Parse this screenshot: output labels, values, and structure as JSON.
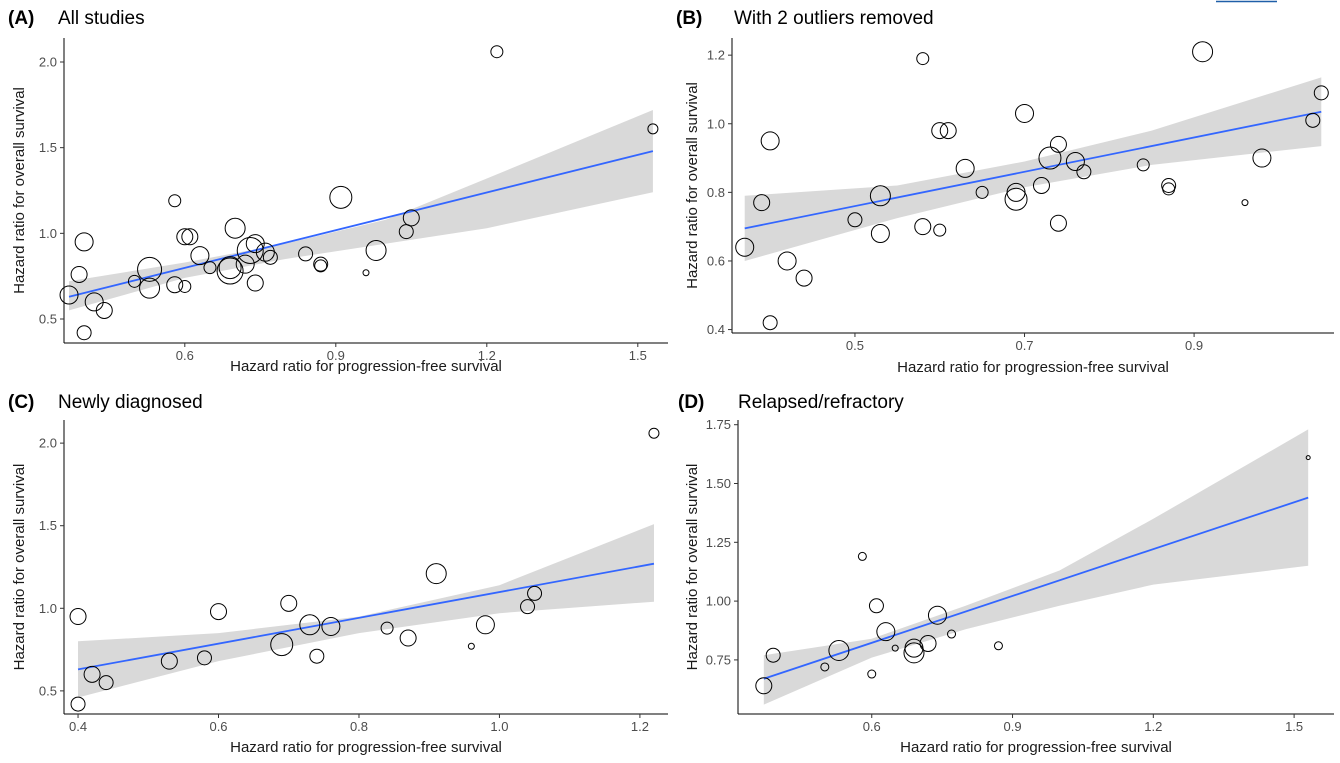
{
  "chart_data": [
    {
      "type": "scatter",
      "panel": "(A)",
      "title": "All studies",
      "xlabel": "Hazard ratio for progression-free survival",
      "ylabel": "Hazard ratio for overall survival",
      "xlim": [
        0.36,
        1.56
      ],
      "ylim": [
        0.36,
        2.14
      ],
      "xticks": [
        0.6,
        0.9,
        1.2,
        1.5
      ],
      "xtick_labels": [
        "0.6",
        "0.9",
        "1.2",
        "1.5"
      ],
      "yticks": [
        0.5,
        1.0,
        1.5,
        2.0
      ],
      "ytick_labels": [
        "0.5",
        "1.0",
        "1.5",
        "2.0"
      ],
      "fit": {
        "x": [
          0.37,
          1.53
        ],
        "y": [
          0.63,
          1.48
        ]
      },
      "band": {
        "x": [
          0.37,
          0.6,
          0.8,
          1.0,
          1.2,
          1.53
        ],
        "lower": [
          0.55,
          0.74,
          0.85,
          0.94,
          1.03,
          1.24
        ],
        "upper": [
          0.72,
          0.83,
          0.94,
          1.08,
          1.32,
          1.72
        ]
      },
      "points": [
        {
          "x": 0.37,
          "y": 0.64,
          "size": 9
        },
        {
          "x": 0.39,
          "y": 0.76,
          "size": 8
        },
        {
          "x": 0.4,
          "y": 0.95,
          "size": 9
        },
        {
          "x": 0.4,
          "y": 0.42,
          "size": 7
        },
        {
          "x": 0.42,
          "y": 0.6,
          "size": 9
        },
        {
          "x": 0.44,
          "y": 0.55,
          "size": 8
        },
        {
          "x": 0.5,
          "y": 0.72,
          "size": 6
        },
        {
          "x": 0.53,
          "y": 0.79,
          "size": 12
        },
        {
          "x": 0.53,
          "y": 0.68,
          "size": 10
        },
        {
          "x": 0.58,
          "y": 0.7,
          "size": 8
        },
        {
          "x": 0.58,
          "y": 1.19,
          "size": 6
        },
        {
          "x": 0.6,
          "y": 0.98,
          "size": 8
        },
        {
          "x": 0.61,
          "y": 0.98,
          "size": 8
        },
        {
          "x": 0.6,
          "y": 0.69,
          "size": 6
        },
        {
          "x": 0.63,
          "y": 0.87,
          "size": 9
        },
        {
          "x": 0.65,
          "y": 0.8,
          "size": 6
        },
        {
          "x": 0.69,
          "y": 0.8,
          "size": 11
        },
        {
          "x": 0.69,
          "y": 0.78,
          "size": 13
        },
        {
          "x": 0.7,
          "y": 1.03,
          "size": 10
        },
        {
          "x": 0.72,
          "y": 0.82,
          "size": 9
        },
        {
          "x": 0.73,
          "y": 0.9,
          "size": 13
        },
        {
          "x": 0.74,
          "y": 0.94,
          "size": 9
        },
        {
          "x": 0.74,
          "y": 0.71,
          "size": 8
        },
        {
          "x": 0.76,
          "y": 0.89,
          "size": 9
        },
        {
          "x": 0.77,
          "y": 0.86,
          "size": 7
        },
        {
          "x": 0.84,
          "y": 0.88,
          "size": 7
        },
        {
          "x": 0.87,
          "y": 0.82,
          "size": 7
        },
        {
          "x": 0.87,
          "y": 0.81,
          "size": 6
        },
        {
          "x": 0.91,
          "y": 1.21,
          "size": 11
        },
        {
          "x": 0.96,
          "y": 0.77,
          "size": 3
        },
        {
          "x": 0.98,
          "y": 0.9,
          "size": 10
        },
        {
          "x": 1.04,
          "y": 1.01,
          "size": 7
        },
        {
          "x": 1.05,
          "y": 1.09,
          "size": 8
        },
        {
          "x": 1.22,
          "y": 2.06,
          "size": 6
        },
        {
          "x": 1.53,
          "y": 1.61,
          "size": 5
        }
      ]
    },
    {
      "type": "scatter",
      "panel": "(B)",
      "title": "With 2 outliers removed",
      "xlabel": "Hazard ratio for progression-free survival",
      "ylabel": "Hazard ratio for overall survival",
      "xlim": [
        0.355,
        1.065
      ],
      "ylim": [
        0.39,
        1.25
      ],
      "xticks": [
        0.5,
        0.7,
        0.9
      ],
      "xtick_labels": [
        "0.5",
        "0.7",
        "0.9"
      ],
      "yticks": [
        0.4,
        0.6,
        0.8,
        1.0,
        1.2
      ],
      "ytick_labels": [
        "0.4",
        "0.6",
        "0.8",
        "1.0",
        "1.2"
      ],
      "fit": {
        "x": [
          0.37,
          1.05
        ],
        "y": [
          0.695,
          1.035
        ]
      },
      "band": {
        "x": [
          0.37,
          0.55,
          0.7,
          0.85,
          1.05
        ],
        "lower": [
          0.6,
          0.725,
          0.815,
          0.88,
          0.935
        ],
        "upper": [
          0.79,
          0.82,
          0.89,
          0.98,
          1.135
        ]
      },
      "points": [
        {
          "x": 0.37,
          "y": 0.64,
          "size": 9
        },
        {
          "x": 0.39,
          "y": 0.77,
          "size": 8
        },
        {
          "x": 0.4,
          "y": 0.95,
          "size": 9
        },
        {
          "x": 0.4,
          "y": 0.42,
          "size": 7
        },
        {
          "x": 0.42,
          "y": 0.6,
          "size": 9
        },
        {
          "x": 0.44,
          "y": 0.55,
          "size": 8
        },
        {
          "x": 0.5,
          "y": 0.72,
          "size": 7
        },
        {
          "x": 0.53,
          "y": 0.79,
          "size": 10
        },
        {
          "x": 0.53,
          "y": 0.68,
          "size": 9
        },
        {
          "x": 0.58,
          "y": 0.7,
          "size": 8
        },
        {
          "x": 0.58,
          "y": 1.19,
          "size": 6
        },
        {
          "x": 0.6,
          "y": 0.98,
          "size": 8
        },
        {
          "x": 0.61,
          "y": 0.98,
          "size": 8
        },
        {
          "x": 0.6,
          "y": 0.69,
          "size": 6
        },
        {
          "x": 0.63,
          "y": 0.87,
          "size": 9
        },
        {
          "x": 0.65,
          "y": 0.8,
          "size": 6
        },
        {
          "x": 0.69,
          "y": 0.8,
          "size": 9
        },
        {
          "x": 0.69,
          "y": 0.78,
          "size": 11
        },
        {
          "x": 0.7,
          "y": 1.03,
          "size": 9
        },
        {
          "x": 0.72,
          "y": 0.82,
          "size": 8
        },
        {
          "x": 0.73,
          "y": 0.9,
          "size": 11
        },
        {
          "x": 0.74,
          "y": 0.94,
          "size": 8
        },
        {
          "x": 0.74,
          "y": 0.71,
          "size": 8
        },
        {
          "x": 0.76,
          "y": 0.89,
          "size": 9
        },
        {
          "x": 0.77,
          "y": 0.86,
          "size": 7
        },
        {
          "x": 0.84,
          "y": 0.88,
          "size": 6
        },
        {
          "x": 0.87,
          "y": 0.82,
          "size": 7
        },
        {
          "x": 0.87,
          "y": 0.81,
          "size": 6
        },
        {
          "x": 0.91,
          "y": 1.21,
          "size": 10
        },
        {
          "x": 0.96,
          "y": 0.77,
          "size": 3
        },
        {
          "x": 0.98,
          "y": 0.9,
          "size": 9
        },
        {
          "x": 1.04,
          "y": 1.01,
          "size": 7
        },
        {
          "x": 1.05,
          "y": 1.09,
          "size": 7
        }
      ]
    },
    {
      "type": "scatter",
      "panel": "(C)",
      "title": "Newly diagnosed",
      "xlabel": "Hazard ratio for progression-free survival",
      "ylabel": "Hazard ratio for overall survival",
      "xlim": [
        0.38,
        1.24
      ],
      "ylim": [
        0.36,
        2.14
      ],
      "xticks": [
        0.4,
        0.6,
        0.8,
        1.0,
        1.2
      ],
      "xtick_labels": [
        "0.4",
        "0.6",
        "0.8",
        "1.0",
        "1.2"
      ],
      "yticks": [
        0.5,
        1.0,
        1.5,
        2.0
      ],
      "ytick_labels": [
        "0.5",
        "1.0",
        "1.5",
        "2.0"
      ],
      "fit": {
        "x": [
          0.4,
          1.22
        ],
        "y": [
          0.63,
          1.27
        ]
      },
      "band": {
        "x": [
          0.4,
          0.6,
          0.8,
          1.0,
          1.22
        ],
        "lower": [
          0.46,
          0.68,
          0.85,
          0.97,
          1.04
        ],
        "upper": [
          0.8,
          0.85,
          0.95,
          1.14,
          1.51
        ]
      },
      "points": [
        {
          "x": 0.4,
          "y": 0.95,
          "size": 8
        },
        {
          "x": 0.4,
          "y": 0.42,
          "size": 7
        },
        {
          "x": 0.42,
          "y": 0.6,
          "size": 8
        },
        {
          "x": 0.44,
          "y": 0.55,
          "size": 7
        },
        {
          "x": 0.53,
          "y": 0.68,
          "size": 8
        },
        {
          "x": 0.58,
          "y": 0.7,
          "size": 7
        },
        {
          "x": 0.6,
          "y": 0.98,
          "size": 8
        },
        {
          "x": 0.69,
          "y": 0.78,
          "size": 11
        },
        {
          "x": 0.7,
          "y": 1.03,
          "size": 8
        },
        {
          "x": 0.73,
          "y": 0.9,
          "size": 10
        },
        {
          "x": 0.74,
          "y": 0.71,
          "size": 7
        },
        {
          "x": 0.76,
          "y": 0.89,
          "size": 9
        },
        {
          "x": 0.84,
          "y": 0.88,
          "size": 6
        },
        {
          "x": 0.87,
          "y": 0.82,
          "size": 8
        },
        {
          "x": 0.91,
          "y": 1.21,
          "size": 10
        },
        {
          "x": 0.96,
          "y": 0.77,
          "size": 3
        },
        {
          "x": 0.98,
          "y": 0.9,
          "size": 9
        },
        {
          "x": 1.04,
          "y": 1.01,
          "size": 7
        },
        {
          "x": 1.05,
          "y": 1.09,
          "size": 7
        },
        {
          "x": 1.22,
          "y": 2.06,
          "size": 5
        }
      ]
    },
    {
      "type": "scatter",
      "panel": "(D)",
      "title": "Relapsed/refractory",
      "xlabel": "Hazard ratio for progression-free survival",
      "ylabel": "Hazard ratio for overall survival",
      "xlim": [
        0.315,
        1.585
      ],
      "ylim": [
        0.52,
        1.77
      ],
      "xticks": [
        0.6,
        0.9,
        1.2,
        1.5
      ],
      "xtick_labels": [
        "0.6",
        "0.9",
        "1.2",
        "1.5"
      ],
      "yticks": [
        0.75,
        1.0,
        1.25,
        1.5,
        1.75
      ],
      "ytick_labels": [
        "0.75",
        "1.00",
        "1.25",
        "1.50",
        "1.75"
      ],
      "fit": {
        "x": [
          0.37,
          1.53
        ],
        "y": [
          0.67,
          1.44
        ]
      },
      "band": {
        "x": [
          0.37,
          0.6,
          0.8,
          1.0,
          1.2,
          1.53
        ],
        "lower": [
          0.56,
          0.76,
          0.88,
          0.98,
          1.07,
          1.15
        ],
        "upper": [
          0.77,
          0.84,
          0.98,
          1.13,
          1.35,
          1.73
        ]
      },
      "points": [
        {
          "x": 0.37,
          "y": 0.64,
          "size": 8
        },
        {
          "x": 0.39,
          "y": 0.77,
          "size": 7
        },
        {
          "x": 0.5,
          "y": 0.72,
          "size": 4
        },
        {
          "x": 0.53,
          "y": 0.79,
          "size": 10
        },
        {
          "x": 0.58,
          "y": 1.19,
          "size": 4
        },
        {
          "x": 0.6,
          "y": 0.69,
          "size": 4
        },
        {
          "x": 0.61,
          "y": 0.98,
          "size": 7
        },
        {
          "x": 0.63,
          "y": 0.87,
          "size": 9
        },
        {
          "x": 0.65,
          "y": 0.8,
          "size": 3
        },
        {
          "x": 0.69,
          "y": 0.8,
          "size": 9
        },
        {
          "x": 0.69,
          "y": 0.78,
          "size": 10
        },
        {
          "x": 0.72,
          "y": 0.82,
          "size": 8
        },
        {
          "x": 0.74,
          "y": 0.94,
          "size": 9
        },
        {
          "x": 0.77,
          "y": 0.86,
          "size": 4
        },
        {
          "x": 0.87,
          "y": 0.81,
          "size": 4
        },
        {
          "x": 1.53,
          "y": 1.61,
          "size": 2
        }
      ]
    }
  ]
}
